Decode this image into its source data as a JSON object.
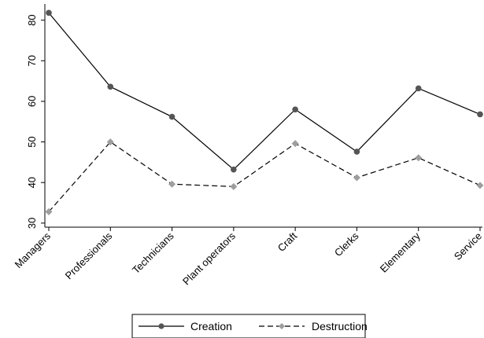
{
  "chart_data": {
    "type": "line",
    "title": "",
    "xlabel": "",
    "ylabel": "",
    "categories": [
      "Managers",
      "Professionals",
      "Technicians",
      "Plant operators",
      "Craft",
      "Clerks",
      "Elementary",
      "Service"
    ],
    "ylim": [
      29,
      84
    ],
    "yticks": [
      30,
      40,
      50,
      60,
      70,
      80
    ],
    "grid": false,
    "legend_position": "bottom",
    "series": [
      {
        "name": "Creation",
        "values": [
          81.8,
          63.6,
          56.2,
          43.2,
          58.0,
          47.6,
          63.2,
          56.8
        ],
        "color": "#000000",
        "line_style": "solid",
        "marker": "circle",
        "marker_color": "#555555"
      },
      {
        "name": "Destruction",
        "values": [
          32.8,
          50.0,
          39.6,
          39.0,
          49.6,
          41.2,
          46.1,
          39.3
        ],
        "color": "#000000",
        "line_style": "dashed",
        "marker": "diamond",
        "marker_color": "#9e9e9e"
      }
    ]
  }
}
